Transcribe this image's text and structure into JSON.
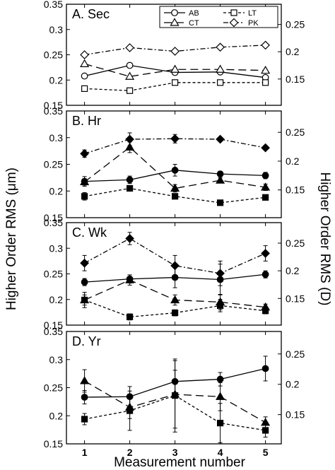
{
  "chart_data": {
    "type": "line",
    "ylabel_left": "Higher Order RMS (μm)",
    "ylabel_right": "Higher Order RMS (D)",
    "xlabel": "Measurement number",
    "x": [
      1,
      2,
      3,
      4,
      5
    ],
    "xlim": [
      0.6,
      5.35
    ],
    "ylim_left": [
      0.15,
      0.35
    ],
    "left_ticks": [
      "0.15",
      "0.2",
      "0.25",
      "0.3",
      "0.35"
    ],
    "right_ticks_by_panel": [
      [
        "0.15",
        "0.2",
        "0.25"
      ],
      [
        "0.15",
        "0.2",
        "0.25"
      ],
      [
        "0.15",
        "0.2",
        "0.25"
      ],
      [
        "0.15",
        "0.2",
        "0.25"
      ]
    ],
    "legend": {
      "position": "top-right of panel A",
      "entries": [
        {
          "key": "AB",
          "label": "AB"
        },
        {
          "key": "LT",
          "label": "LT"
        },
        {
          "key": "CT",
          "label": "CT"
        },
        {
          "key": "PK",
          "label": "PK"
        }
      ]
    },
    "series_styles": {
      "AB": {
        "dash": "solid",
        "marker": "circle"
      },
      "CT": {
        "dash": "long-dash",
        "marker": "triangle"
      },
      "LT": {
        "dash": "short-dash",
        "marker": "square"
      },
      "PK": {
        "dash": "dash-dot",
        "marker": "diamond"
      }
    },
    "panels": [
      {
        "title": "A. Sec",
        "filled": false,
        "series": [
          {
            "key": "AB",
            "values": [
              0.208,
              0.229,
              0.215,
              0.216,
              0.205
            ],
            "errors": [
              0,
              0,
              0,
              0,
              0
            ]
          },
          {
            "key": "CT",
            "values": [
              0.232,
              0.207,
              0.221,
              0.221,
              0.219
            ],
            "errors": [
              0,
              0,
              0,
              0,
              0
            ]
          },
          {
            "key": "LT",
            "values": [
              0.183,
              0.179,
              0.195,
              0.195,
              0.195
            ],
            "errors": [
              0,
              0,
              0,
              0,
              0
            ]
          },
          {
            "key": "PK",
            "values": [
              0.25,
              0.264,
              0.257,
              0.265,
              0.269
            ],
            "errors": [
              0,
              0,
              0,
              0,
              0
            ]
          }
        ]
      },
      {
        "title": "B. Hr",
        "filled": true,
        "series": [
          {
            "key": "AB",
            "values": [
              0.218,
              0.221,
              0.239,
              0.232,
              0.229
            ],
            "errors": [
              0.009,
              0.007,
              0.011,
              0.005,
              0.006
            ]
          },
          {
            "key": "CT",
            "values": [
              0.217,
              0.282,
              0.205,
              0.22,
              0.207
            ],
            "errors": [
              0.006,
              0.01,
              0.007,
              0.005,
              0.006
            ]
          },
          {
            "key": "LT",
            "values": [
              0.19,
              0.205,
              0.19,
              0.178,
              0.188
            ],
            "errors": [
              0.007,
              0.005,
              0.004,
              0.003,
              0.005
            ]
          },
          {
            "key": "PK",
            "values": [
              0.27,
              0.297,
              0.298,
              0.297,
              0.281
            ],
            "errors": [
              0.007,
              0.012,
              0.008,
              0.004,
              0.004
            ]
          }
        ]
      },
      {
        "title": "C. Wk",
        "filled": true,
        "series": [
          {
            "key": "AB",
            "values": [
              0.234,
              0.24,
              0.243,
              0.239,
              0.249
            ],
            "errors": [
              0.007,
              0.008,
              0.02,
              0.03,
              0.007
            ]
          },
          {
            "key": "CT",
            "values": [
              0.199,
              0.238,
              0.199,
              0.195,
              0.185
            ],
            "errors": [
              0.015,
              0.01,
              0.01,
              0.015,
              0.006
            ]
          },
          {
            "key": "LT",
            "values": [
              0.199,
              0.166,
              0.174,
              0.188,
              0.178
            ],
            "errors": [
              0.01,
              0.006,
              0.006,
              0.012,
              0.006
            ]
          },
          {
            "key": "PK",
            "values": [
              0.271,
              0.319,
              0.266,
              0.251,
              0.29
            ],
            "errors": [
              0.015,
              0.012,
              0.02,
              0.024,
              0.015
            ]
          }
        ]
      },
      {
        "title": "D. Yr",
        "filled": true,
        "series": [
          {
            "key": "AB",
            "values": [
              0.233,
              0.234,
              0.261,
              0.265,
              0.284
            ],
            "errors": [
              0.012,
              0.018,
              0.02,
              0.012,
              0.022
            ]
          },
          {
            "key": "CT",
            "values": [
              0.262,
              0.215,
              0.238,
              0.234,
              0.188
            ],
            "errors": [
              0.02,
              0.02,
              0.06,
              0.025,
              0.01
            ]
          },
          {
            "key": "LT",
            "values": [
              0.194,
              0.209,
              0.236,
              0.187,
              0.174
            ],
            "errors": [
              0.01,
              0.035,
              0.065,
              0.035,
              0.012
            ]
          }
        ]
      }
    ]
  }
}
